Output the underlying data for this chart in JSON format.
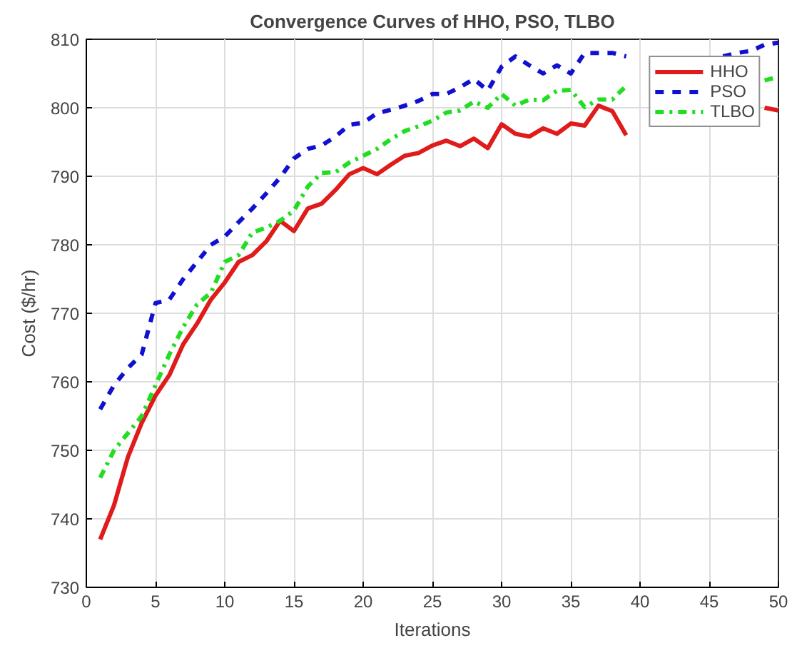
{
  "chart_data": {
    "type": "line",
    "title": "Convergence Curves of HHO, PSO, TLBO",
    "xlabel": "Iterations",
    "ylabel": "Cost ($/hr)",
    "x": [
      1,
      2,
      3,
      4,
      5,
      6,
      7,
      8,
      9,
      10,
      11,
      12,
      13,
      14,
      15,
      16,
      17,
      18,
      19,
      20,
      21,
      22,
      23,
      24,
      25,
      26,
      27,
      28,
      29,
      30,
      31,
      32,
      33,
      34,
      35,
      36,
      37,
      38,
      39,
      40,
      41,
      42,
      43,
      44,
      45,
      46,
      47,
      48,
      49,
      50
    ],
    "series": [
      {
        "name": "HHO",
        "color": "#e01b1b",
        "line_style": "solid",
        "values": [
          737,
          742,
          749,
          754,
          758,
          761,
          765.5,
          768.5,
          772,
          774.5,
          777.5,
          778.5,
          780.5,
          783.5,
          782,
          785.3,
          786,
          788,
          790.3,
          791.2,
          790.3,
          791.7,
          793,
          793.4,
          794.5,
          795.2,
          794.4,
          795.5,
          794.1,
          797.6,
          796.2,
          795.8,
          797,
          796.2,
          797.7,
          797.4,
          800.3,
          799.5,
          796,
          null,
          null,
          null,
          null,
          null,
          null,
          null,
          null,
          null,
          800,
          799.6
        ]
      },
      {
        "name": "PSO",
        "color": "#1010d0",
        "line_style": "dashed",
        "values": [
          756,
          759.5,
          762,
          764,
          771.5,
          772,
          775,
          777.5,
          780,
          781.2,
          783.3,
          785.3,
          787.5,
          789.8,
          792.6,
          794,
          794.5,
          795.8,
          797.5,
          797.8,
          799.2,
          799.7,
          800.3,
          801,
          802,
          802,
          803,
          804.2,
          802.5,
          806,
          807.5,
          806.2,
          805,
          806.2,
          805,
          808,
          808,
          808,
          807.5,
          null,
          null,
          null,
          null,
          null,
          null,
          807.5,
          808,
          808.3,
          809.2,
          809.5
        ]
      },
      {
        "name": "TLBO",
        "color": "#22dd22",
        "line_style": "dashdot",
        "values": [
          746,
          750,
          752.5,
          755,
          759.5,
          764,
          768,
          771.3,
          773,
          777.5,
          778.5,
          781.8,
          782.5,
          783.5,
          785,
          788.5,
          790.5,
          790.6,
          792,
          793,
          794,
          795.4,
          796.6,
          797.3,
          798.1,
          799.3,
          799.6,
          800.9,
          800,
          802,
          800.3,
          801.2,
          801.1,
          802.5,
          802.6,
          800.1,
          801.2,
          801.2,
          803.2,
          null,
          null,
          null,
          null,
          null,
          null,
          null,
          null,
          null,
          804,
          804.5
        ]
      }
    ],
    "xlim": [
      0,
      50
    ],
    "ylim": [
      730,
      810
    ],
    "xticks": [
      0,
      5,
      10,
      15,
      20,
      25,
      30,
      35,
      40,
      45,
      50
    ],
    "yticks": [
      730,
      740,
      750,
      760,
      770,
      780,
      790,
      800,
      810
    ],
    "grid": true,
    "legend": "top right"
  }
}
